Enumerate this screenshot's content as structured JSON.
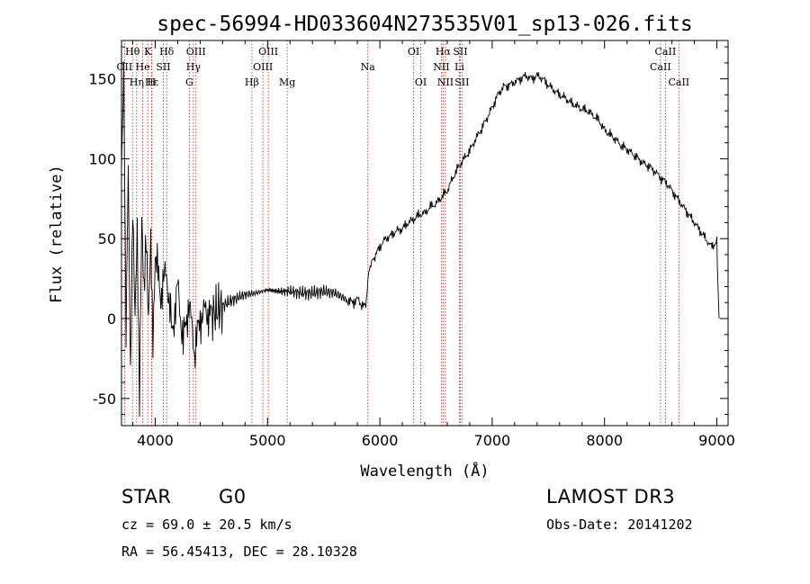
{
  "chart_data": {
    "type": "line",
    "title": "spec-56994-HD033604N273535V01_sp13-026.fits",
    "xlabel": "Wavelength (Å)",
    "ylabel": "Flux (relative)",
    "xlim": [
      3700,
      9100
    ],
    "ylim": [
      -67,
      174
    ],
    "xticks": [
      4000,
      5000,
      6000,
      7000,
      8000,
      9000
    ],
    "yticks": [
      -50,
      0,
      50,
      100,
      150
    ],
    "series": [
      {
        "name": "spectrum",
        "x": [
          3700,
          3720,
          3740,
          3760,
          3780,
          3800,
          3820,
          3840,
          3860,
          3880,
          3900,
          3920,
          3940,
          3960,
          3980,
          4000,
          4050,
          4100,
          4150,
          4200,
          4250,
          4300,
          4350,
          4400,
          4450,
          4500,
          4600,
          4700,
          4800,
          4900,
          5000,
          5100,
          5200,
          5300,
          5400,
          5500,
          5600,
          5700,
          5750,
          5800,
          5850,
          5880,
          5900,
          5920,
          5950,
          6000,
          6050,
          6100,
          6150,
          6200,
          6250,
          6300,
          6350,
          6400,
          6450,
          6500,
          6550,
          6600,
          6650,
          6700,
          6750,
          6800,
          6850,
          6900,
          6950,
          7000,
          7050,
          7100,
          7150,
          7200,
          7250,
          7300,
          7350,
          7400,
          7450,
          7500,
          7550,
          7600,
          7650,
          7700,
          7750,
          7800,
          7850,
          7900,
          7950,
          8000,
          8050,
          8100,
          8150,
          8200,
          8250,
          8300,
          8350,
          8400,
          8450,
          8500,
          8550,
          8600,
          8650,
          8700,
          8750,
          8800,
          8850,
          8900,
          8950,
          9000,
          9010,
          9020
        ],
        "values": [
          100,
          160,
          -20,
          95,
          -30,
          70,
          -5,
          55,
          -45,
          60,
          10,
          55,
          5,
          45,
          -20,
          40,
          15,
          30,
          -10,
          20,
          -15,
          10,
          -20,
          0,
          5,
          2,
          8,
          12,
          15,
          16,
          18,
          17,
          17,
          16,
          16,
          17,
          16,
          12,
          10,
          12,
          8,
          10,
          30,
          35,
          38,
          45,
          50,
          52,
          55,
          56,
          60,
          62,
          65,
          66,
          70,
          72,
          76,
          80,
          88,
          95,
          100,
          105,
          112,
          118,
          125,
          132,
          140,
          145,
          146,
          148,
          150,
          152,
          150,
          152,
          150,
          146,
          143,
          140,
          138,
          135,
          133,
          131,
          130,
          127,
          124,
          118,
          115,
          112,
          108,
          106,
          103,
          100,
          97,
          95,
          92,
          88,
          85,
          80,
          75,
          70,
          65,
          60,
          55,
          50,
          45,
          48,
          20,
          0
        ]
      }
    ],
    "line_markers": [
      {
        "label": "Hθ",
        "wavelength": 3798,
        "row": 0
      },
      {
        "label": "K",
        "wavelength": 3934,
        "row": 0
      },
      {
        "label": "Hδ",
        "wavelength": 4102,
        "row": 0
      },
      {
        "label": "OIII",
        "wavelength": 4363,
        "row": 0
      },
      {
        "label": "OIII",
        "wavelength": 5007,
        "row": 0
      },
      {
        "label": "OI",
        "wavelength": 6300,
        "row": 0
      },
      {
        "label": "Hα",
        "wavelength": 6563,
        "row": 0
      },
      {
        "label": "SII",
        "wavelength": 6716,
        "row": 0
      },
      {
        "label": "CaII",
        "wavelength": 8542,
        "row": 0
      },
      {
        "label": "OII",
        "wavelength": 3727,
        "row": 1
      },
      {
        "label": "He",
        "wavelength": 3889,
        "row": 1
      },
      {
        "label": "SII",
        "wavelength": 4072,
        "row": 1
      },
      {
        "label": "Hγ",
        "wavelength": 4340,
        "row": 1
      },
      {
        "label": "OIII",
        "wavelength": 4959,
        "row": 1
      },
      {
        "label": "Na",
        "wavelength": 5893,
        "row": 1
      },
      {
        "label": "NII",
        "wavelength": 6548,
        "row": 1
      },
      {
        "label": "Li",
        "wavelength": 6708,
        "row": 1
      },
      {
        "label": "CaII",
        "wavelength": 8498,
        "row": 1
      },
      {
        "label": "Hε",
        "wavelength": 3970,
        "row": 2
      },
      {
        "label": "Hη",
        "wavelength": 3835,
        "row": 2
      },
      {
        "label": "H",
        "wavelength": 3968,
        "row": 2
      },
      {
        "label": "G",
        "wavelength": 4304,
        "row": 2
      },
      {
        "label": "Hβ",
        "wavelength": 4861,
        "row": 2
      },
      {
        "label": "Mg",
        "wavelength": 5175,
        "row": 2
      },
      {
        "label": "OI",
        "wavelength": 6364,
        "row": 2
      },
      {
        "label": "NII",
        "wavelength": 6584,
        "row": 2
      },
      {
        "label": "SII",
        "wavelength": 6731,
        "row": 2
      },
      {
        "label": "CaII",
        "wavelength": 8662,
        "row": 2
      }
    ]
  },
  "info": {
    "class_label": "STAR",
    "subclass": "G0",
    "survey": "LAMOST DR3",
    "cz": "cz = 69.0 ± 20.5 km/s",
    "obs_date": "Obs-Date: 20141202",
    "coords": "RA =  56.45413, DEC =  28.10328"
  }
}
